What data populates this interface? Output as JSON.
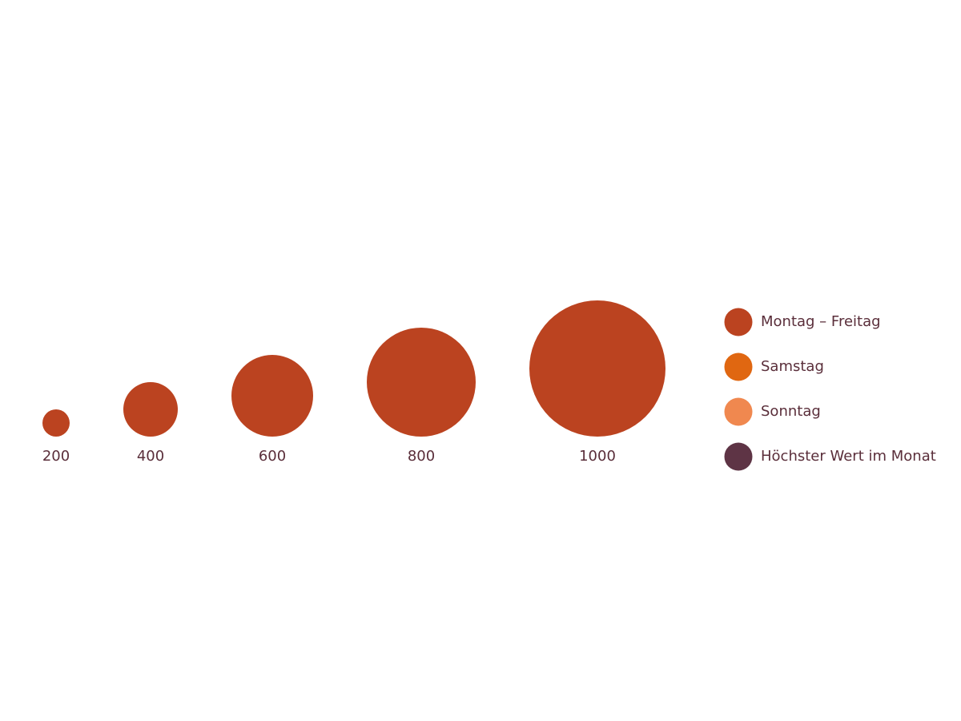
{
  "chart_data": {
    "type": "size-legend",
    "sizes": [
      200,
      400,
      600,
      800,
      1000
    ],
    "size_color": "#bb4320",
    "legend": [
      {
        "name": "Montag – Freitag",
        "color": "#bb4320"
      },
      {
        "name": "Samstag",
        "color": "#e06711"
      },
      {
        "name": "Sonntag",
        "color": "#f0884f"
      },
      {
        "name": "Höchster Wert im Monat",
        "color": "#5e3445"
      }
    ]
  }
}
